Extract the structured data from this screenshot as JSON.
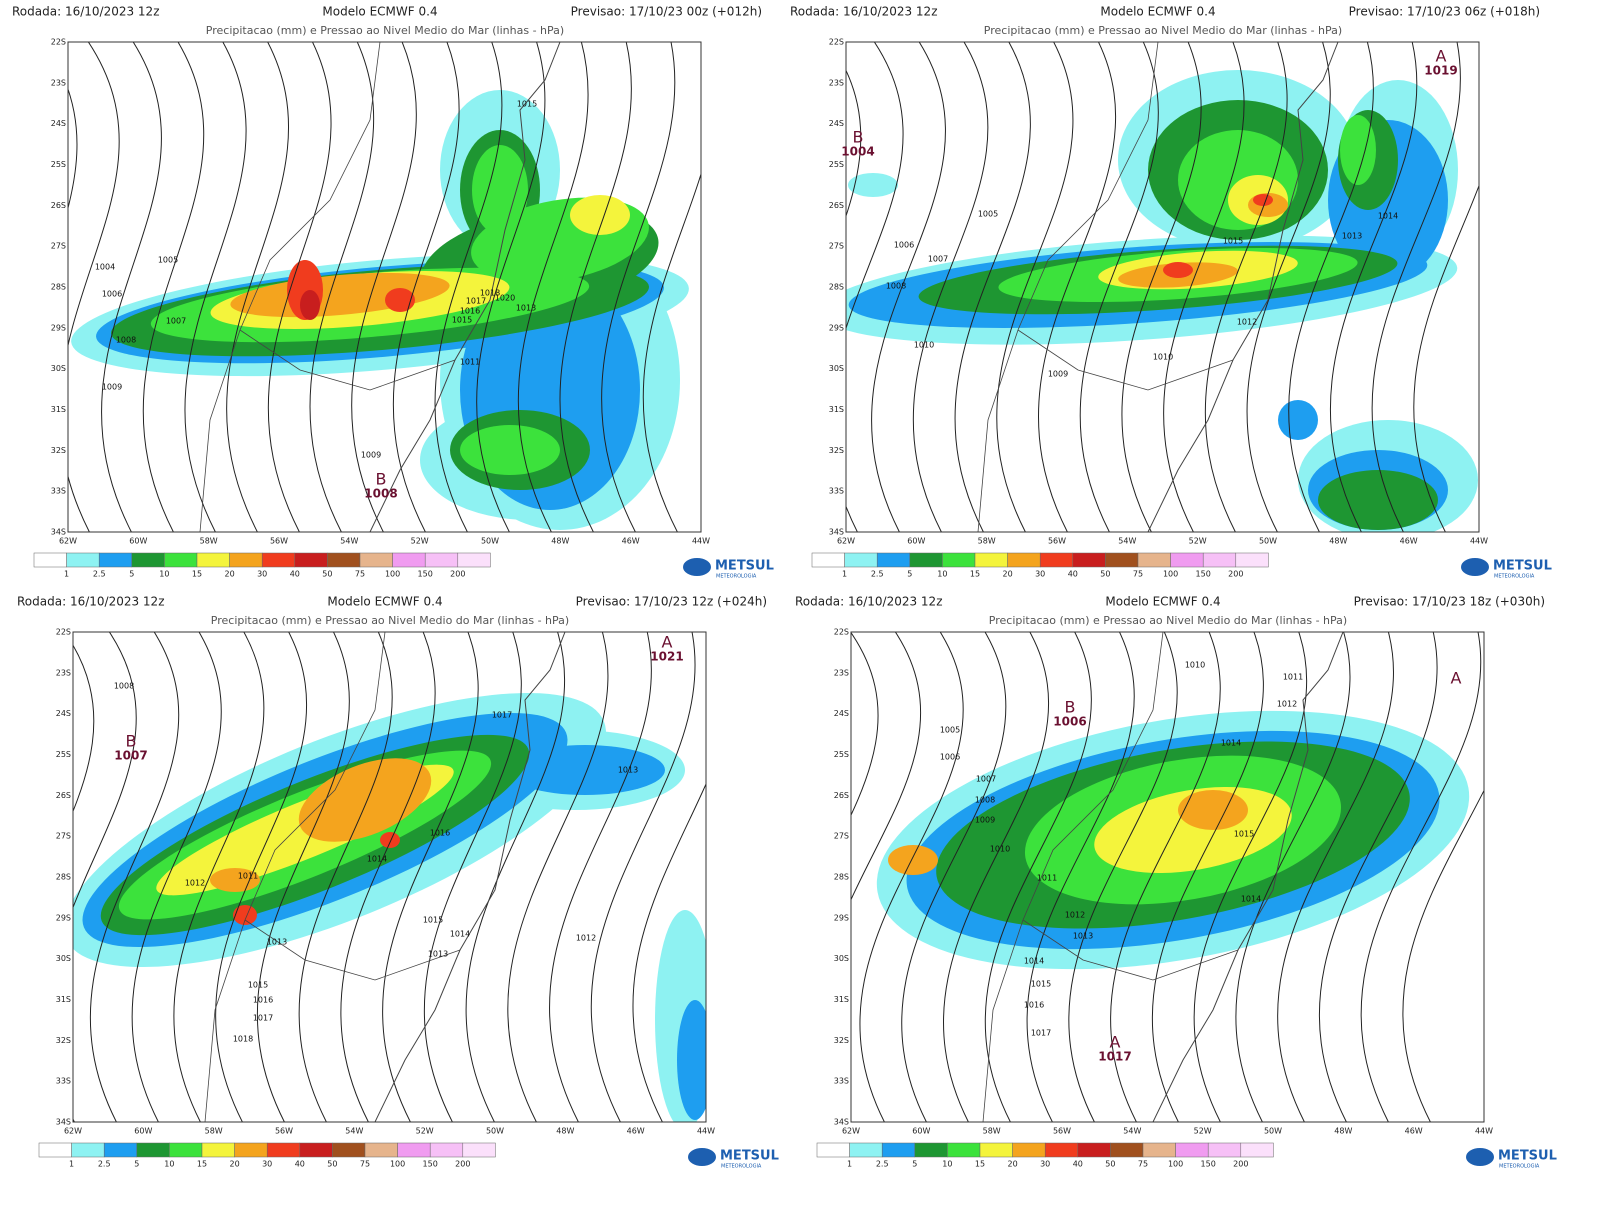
{
  "panels": [
    {
      "run": "Rodada: 16/10/2023 12z",
      "model": "Modelo ECMWF 0.4",
      "forecast": "Previsao: 17/10/23 00z (+012h)",
      "title": "Precipitacao (mm) e Pressao ao Nivel Medio do Mar (linhas - hPa)",
      "isobar_labels": [
        "1015",
        "1005",
        "1004",
        "1006",
        "1007",
        "1008",
        "1009",
        "1018",
        "1017",
        "1020",
        "1016",
        "1015",
        "1013",
        "1011",
        "1009"
      ],
      "centers": [
        {
          "letter": "B",
          "value": "1008"
        }
      ]
    },
    {
      "run": "Rodada: 16/10/2023 12z",
      "model": "Modelo ECMWF 0.4",
      "forecast": "Previsao: 17/10/23 06z (+018h)",
      "title": "Precipitacao (mm) e Pressao ao Nivel Medio do Mar (linhas - hPa)",
      "isobar_labels": [
        "1005",
        "1006",
        "1007",
        "1008",
        "1010",
        "1009",
        "1010",
        "1015",
        "1013",
        "1014",
        "1012"
      ],
      "centers": [
        {
          "letter": "B",
          "value": "1004"
        },
        {
          "letter": "A",
          "value": "1019"
        }
      ]
    },
    {
      "run": "Rodada: 16/10/2023 12z",
      "model": "Modelo ECMWF 0.4",
      "forecast": "Previsao: 17/10/23 12z (+024h)",
      "title": "Precipitacao (mm) e Pressao ao Nivel Medio do Mar (linhas - hPa)",
      "isobar_labels": [
        "1008",
        "1017",
        "1013",
        "1016",
        "1014",
        "1012",
        "1011",
        "1013",
        "1015",
        "1014",
        "1013",
        "1012",
        "1015",
        "1016",
        "1017",
        "1018"
      ],
      "centers": [
        {
          "letter": "B",
          "value": "1007"
        },
        {
          "letter": "A",
          "value": "1021"
        }
      ]
    },
    {
      "run": "Rodada: 16/10/2023 12z",
      "model": "Modelo ECMWF 0.4",
      "forecast": "Previsao: 17/10/23 18z (+030h)",
      "title": "Precipitacao (mm) e Pressao ao Nivel Medio do Mar (linhas - hPa)",
      "isobar_labels": [
        "1010",
        "1011",
        "1012",
        "1005",
        "1006",
        "1007",
        "1008",
        "1009",
        "1010",
        "1014",
        "1015",
        "1014",
        "1011",
        "1012",
        "1013",
        "1014",
        "1015",
        "1016",
        "1017"
      ],
      "centers": [
        {
          "letter": "B",
          "value": "1006"
        },
        {
          "letter": "A",
          "value": "1017"
        },
        {
          "letter": "A"
        }
      ]
    }
  ],
  "lat_labels": [
    "22S",
    "23S",
    "24S",
    "25S",
    "26S",
    "27S",
    "28S",
    "29S",
    "30S",
    "31S",
    "32S",
    "33S",
    "34S"
  ],
  "lon_labels": [
    "62W",
    "60W",
    "58W",
    "56W",
    "54W",
    "52W",
    "50W",
    "48W",
    "46W",
    "44W"
  ],
  "legend": {
    "labels": [
      "1",
      "2.5",
      "5",
      "10",
      "15",
      "20",
      "30",
      "40",
      "50",
      "75",
      "100",
      "150",
      "200"
    ],
    "colors": [
      "#ffffff",
      "#8ef2f2",
      "#1e9ef0",
      "#1e9632",
      "#3ce23c",
      "#f4f43c",
      "#f4a41e",
      "#f03c1e",
      "#c81e1e",
      "#a0501e",
      "#e6b48c",
      "#f09cf0",
      "#f6c0f6",
      "#fbe0fb"
    ]
  },
  "logo": "METSUL",
  "logo_sub": "METEOROLOGIA"
}
